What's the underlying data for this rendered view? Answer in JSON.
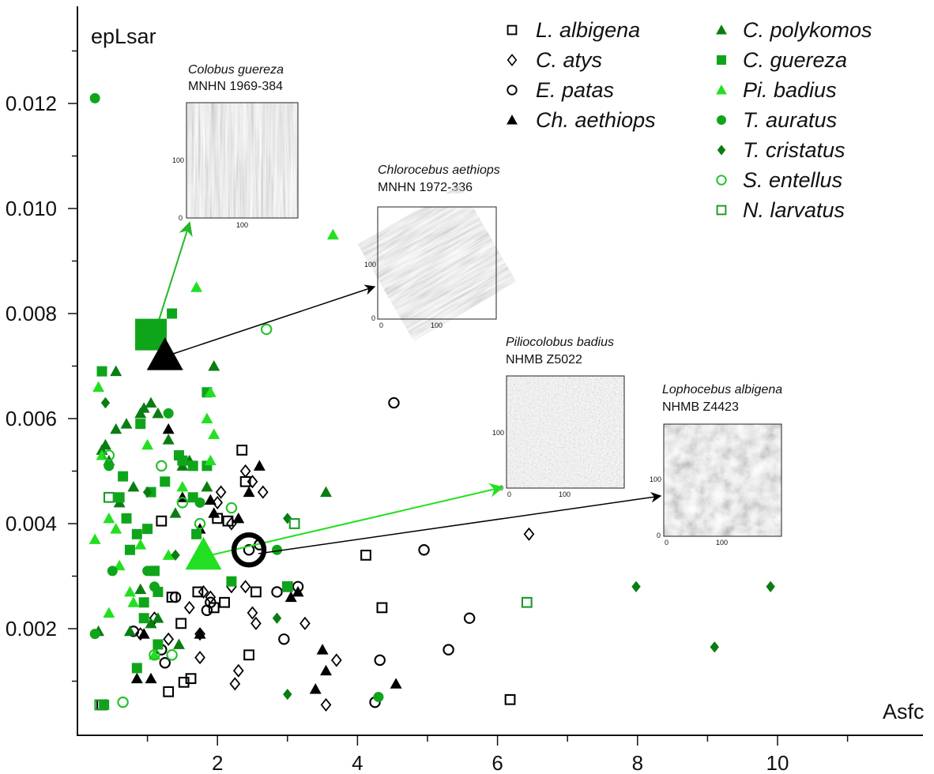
{
  "chart_data": {
    "type": "scatter",
    "xlabel": "Asfc",
    "ylabel": "epLsar",
    "xlim": [
      0,
      12
    ],
    "ylim": [
      0,
      0.0138
    ],
    "xticks": [
      "2",
      "4",
      "6",
      "8",
      "10"
    ],
    "yticks": [
      "0.002",
      "0.004",
      "0.006",
      "0.008",
      "0.010",
      "0.012"
    ],
    "grid": false,
    "legend_position": "top-right",
    "series": [
      {
        "name": "L. albigena",
        "marker": "square-open",
        "color": "#000000",
        "points": [
          [
            1.48,
            0.0021
          ],
          [
            1.52,
            0.00098
          ],
          [
            1.62,
            0.00105
          ],
          [
            1.35,
            0.0026
          ],
          [
            1.72,
            0.0027
          ],
          [
            1.8,
            0.0033
          ],
          [
            1.95,
            0.0024
          ],
          [
            2.1,
            0.0025
          ],
          [
            2.15,
            0.00405
          ],
          [
            1.2,
            0.00405
          ],
          [
            2.45,
            0.0015
          ],
          [
            2.55,
            0.0027
          ],
          [
            2.4,
            0.0048
          ],
          [
            2.35,
            0.0054
          ],
          [
            4.12,
            0.0034
          ],
          [
            4.35,
            0.0024
          ],
          [
            6.18,
            0.00065
          ],
          [
            1.3,
            0.0008
          ],
          [
            0.35,
            0.00055
          ],
          [
            2.0,
            0.0041
          ]
        ]
      },
      {
        "name": "C. atys",
        "marker": "diamond-open",
        "color": "#000000",
        "points": [
          [
            0.9,
            0.0019
          ],
          [
            1.1,
            0.0022
          ],
          [
            1.3,
            0.0018
          ],
          [
            1.6,
            0.0024
          ],
          [
            1.75,
            0.0019
          ],
          [
            1.75,
            0.00145
          ],
          [
            1.8,
            0.0027
          ],
          [
            1.9,
            0.0026
          ],
          [
            2.0,
            0.0044
          ],
          [
            2.05,
            0.0046
          ],
          [
            2.2,
            0.0028
          ],
          [
            2.25,
            0.00095
          ],
          [
            2.3,
            0.0012
          ],
          [
            2.4,
            0.0028
          ],
          [
            2.5,
            0.0023
          ],
          [
            2.55,
            0.0021
          ],
          [
            2.4,
            0.005
          ],
          [
            2.5,
            0.0048
          ],
          [
            2.65,
            0.0046
          ],
          [
            3.25,
            0.0021
          ],
          [
            3.55,
            0.00055
          ],
          [
            3.7,
            0.0014
          ],
          [
            6.45,
            0.0038
          ],
          [
            2.2,
            0.004
          ]
        ]
      },
      {
        "name": "E. patas",
        "marker": "circle-open",
        "color": "#000000",
        "points": [
          [
            0.8,
            0.00195
          ],
          [
            1.2,
            0.0016
          ],
          [
            1.25,
            0.00135
          ],
          [
            1.4,
            0.0026
          ],
          [
            1.9,
            0.0025
          ],
          [
            1.85,
            0.00235
          ],
          [
            2.45,
            0.0035
          ],
          [
            2.6,
            0.0036
          ],
          [
            2.85,
            0.0027
          ],
          [
            2.95,
            0.0018
          ],
          [
            3.15,
            0.0028
          ],
          [
            4.25,
            0.0006
          ],
          [
            4.32,
            0.0014
          ],
          [
            4.52,
            0.0063
          ],
          [
            4.95,
            0.0035
          ],
          [
            5.3,
            0.0016
          ],
          [
            5.6,
            0.0022
          ]
        ]
      },
      {
        "name": "Ch. aethiops",
        "marker": "triangle-filled",
        "color": "#000000",
        "points": [
          [
            0.95,
            0.0019
          ],
          [
            0.85,
            0.00105
          ],
          [
            1.05,
            0.00105
          ],
          [
            1.3,
            0.0058
          ],
          [
            1.5,
            0.0045
          ],
          [
            1.75,
            0.0039
          ],
          [
            1.85,
            0.0035
          ],
          [
            1.9,
            0.00445
          ],
          [
            1.95,
            0.0042
          ],
          [
            1.75,
            0.0019
          ],
          [
            2.3,
            0.0041
          ],
          [
            2.45,
            0.0046
          ],
          [
            2.6,
            0.0051
          ],
          [
            3.15,
            0.0027
          ],
          [
            3.05,
            0.0026
          ],
          [
            3.5,
            0.0016
          ],
          [
            3.55,
            0.0012
          ],
          [
            3.4,
            0.00085
          ],
          [
            4.55,
            0.00095
          ]
        ]
      },
      {
        "name": "C. polykomos",
        "marker": "triangle-filled",
        "color": "#0a7d12",
        "points": [
          [
            0.3,
            0.00195
          ],
          [
            0.35,
            0.0054
          ],
          [
            0.4,
            0.0055
          ],
          [
            0.45,
            0.0052
          ],
          [
            0.55,
            0.0058
          ],
          [
            0.55,
            0.0069
          ],
          [
            0.6,
            0.0044
          ],
          [
            0.7,
            0.0059
          ],
          [
            0.8,
            0.0047
          ],
          [
            0.9,
            0.0061
          ],
          [
            0.95,
            0.0062
          ],
          [
            1.05,
            0.0063
          ],
          [
            1.15,
            0.0061
          ],
          [
            1.3,
            0.0056
          ],
          [
            1.4,
            0.0042
          ],
          [
            1.5,
            0.0051
          ],
          [
            1.6,
            0.0052
          ],
          [
            1.85,
            0.0047
          ],
          [
            1.95,
            0.007
          ],
          [
            3.55,
            0.0046
          ],
          [
            0.9,
            0.00275
          ],
          [
            1.05,
            0.0021
          ],
          [
            1.15,
            0.0022
          ],
          [
            1.45,
            0.0017
          ],
          [
            0.75,
            0.00195
          ]
        ]
      },
      {
        "name": "C. guereza",
        "marker": "square-filled",
        "color": "#0fa51a",
        "points": [
          [
            0.35,
            0.0069
          ],
          [
            0.6,
            0.0045
          ],
          [
            0.65,
            0.0049
          ],
          [
            0.7,
            0.0041
          ],
          [
            0.75,
            0.0035
          ],
          [
            0.85,
            0.0038
          ],
          [
            0.9,
            0.0059
          ],
          [
            0.95,
            0.0025
          ],
          [
            1.0,
            0.0039
          ],
          [
            1.05,
            0.0046
          ],
          [
            1.1,
            0.0031
          ],
          [
            1.15,
            0.0027
          ],
          [
            1.25,
            0.0048
          ],
          [
            1.35,
            0.008
          ],
          [
            1.45,
            0.0053
          ],
          [
            1.5,
            0.0052
          ],
          [
            1.65,
            0.0051
          ],
          [
            1.65,
            0.0045
          ],
          [
            1.7,
            0.0038
          ],
          [
            1.85,
            0.0065
          ],
          [
            1.85,
            0.0051
          ],
          [
            2.2,
            0.0029
          ],
          [
            3.0,
            0.0028
          ],
          [
            0.85,
            0.00125
          ],
          [
            0.95,
            0.0022
          ],
          [
            1.15,
            0.0017
          ],
          [
            0.38,
            0.00055
          ]
        ]
      },
      {
        "name": "Pi. badius",
        "marker": "triangle-filled",
        "color": "#22e021",
        "points": [
          [
            0.25,
            0.0037
          ],
          [
            0.3,
            0.0066
          ],
          [
            0.35,
            0.0053
          ],
          [
            0.45,
            0.0041
          ],
          [
            0.45,
            0.0023
          ],
          [
            0.55,
            0.0039
          ],
          [
            0.6,
            0.0032
          ],
          [
            0.75,
            0.0027
          ],
          [
            0.8,
            0.0025
          ],
          [
            0.9,
            0.0036
          ],
          [
            1.0,
            0.0055
          ],
          [
            1.1,
            0.0015
          ],
          [
            1.3,
            0.0034
          ],
          [
            1.5,
            0.0047
          ],
          [
            1.7,
            0.0085
          ],
          [
            1.85,
            0.006
          ],
          [
            1.9,
            0.0065
          ],
          [
            1.95,
            0.0057
          ],
          [
            1.9,
            0.0052
          ],
          [
            3.65,
            0.0095
          ]
        ]
      },
      {
        "name": "T. auratus",
        "marker": "circle-filled",
        "color": "#0fa51a",
        "points": [
          [
            0.25,
            0.0121
          ],
          [
            0.25,
            0.0019
          ],
          [
            0.45,
            0.0051
          ],
          [
            0.5,
            0.0031
          ],
          [
            1.0,
            0.0031
          ],
          [
            1.1,
            0.0028
          ],
          [
            1.2,
            0.0078
          ],
          [
            1.3,
            0.0061
          ],
          [
            1.75,
            0.0044
          ],
          [
            2.85,
            0.0035
          ],
          [
            4.3,
            0.0007
          ]
        ]
      },
      {
        "name": "T. cristatus",
        "marker": "diamond-filled",
        "color": "#0a7d12",
        "points": [
          [
            0.4,
            0.0063
          ],
          [
            1.0,
            0.0046
          ],
          [
            1.4,
            0.0034
          ],
          [
            2.85,
            0.0022
          ],
          [
            3.0,
            0.00075
          ],
          [
            3.0,
            0.0041
          ],
          [
            7.98,
            0.0028
          ],
          [
            9.1,
            0.00165
          ],
          [
            9.9,
            0.0028
          ]
        ]
      },
      {
        "name": "S. entellus",
        "marker": "circle-open",
        "color": "#22c02a",
        "points": [
          [
            0.45,
            0.0053
          ],
          [
            0.65,
            0.0006
          ],
          [
            1.1,
            0.0015
          ],
          [
            1.2,
            0.0051
          ],
          [
            1.35,
            0.0015
          ],
          [
            1.5,
            0.0044
          ],
          [
            1.75,
            0.004
          ],
          [
            2.2,
            0.0043
          ],
          [
            2.7,
            0.0077
          ]
        ]
      },
      {
        "name": "N. larvatus",
        "marker": "square-open",
        "color": "#1a9a22",
        "points": [
          [
            0.45,
            0.0045
          ],
          [
            3.0,
            0.0028
          ],
          [
            3.1,
            0.004
          ],
          [
            6.42,
            0.0025
          ],
          [
            0.32,
            0.00055
          ]
        ]
      }
    ],
    "highlighted": [
      {
        "label": "Colobus guereza",
        "specimen": "MNHN 1969-384",
        "x": 1.05,
        "y": 0.0076,
        "marker": "square-filled",
        "color": "#0fa51a",
        "arrow_color": "#22b828"
      },
      {
        "label": "Chlorocebus aethiops",
        "specimen": "MNHN 1972-336",
        "x": 1.25,
        "y": 0.0072,
        "marker": "triangle-filled",
        "color": "#000000",
        "arrow_color": "#000000"
      },
      {
        "label": "Piliocolobus badius",
        "specimen": "NHMB Z5022",
        "x": 1.8,
        "y": 0.0034,
        "marker": "triangle-filled",
        "color": "#22e021",
        "arrow_color": "#22e021"
      },
      {
        "label": "Lophocebus albigena",
        "specimen": "NHMB Z4423",
        "x": 2.45,
        "y": 0.0035,
        "marker": "circle-open",
        "color": "#000000",
        "arrow_color": "#000000"
      }
    ],
    "insets": [
      {
        "title": "Colobus guereza",
        "specimen": "MNHN 1969-384",
        "ticks": [
          "0",
          "100",
          "100"
        ],
        "texture": "vertical-striations"
      },
      {
        "title": "Chlorocebus aethiops",
        "specimen": "MNHN 1972-336",
        "ticks": [
          "0",
          "100",
          "0",
          "100"
        ],
        "texture": "diagonal-striations"
      },
      {
        "title": "Piliocolobus badius",
        "specimen": "NHMB Z5022",
        "ticks": [
          "0",
          "100",
          "0",
          "100"
        ],
        "texture": "fine-pits"
      },
      {
        "title": "Lophocebus albigena",
        "specimen": "NHMB Z4423",
        "ticks": [
          "0",
          "100",
          "0",
          "100"
        ],
        "texture": "coarse-pits"
      }
    ]
  }
}
